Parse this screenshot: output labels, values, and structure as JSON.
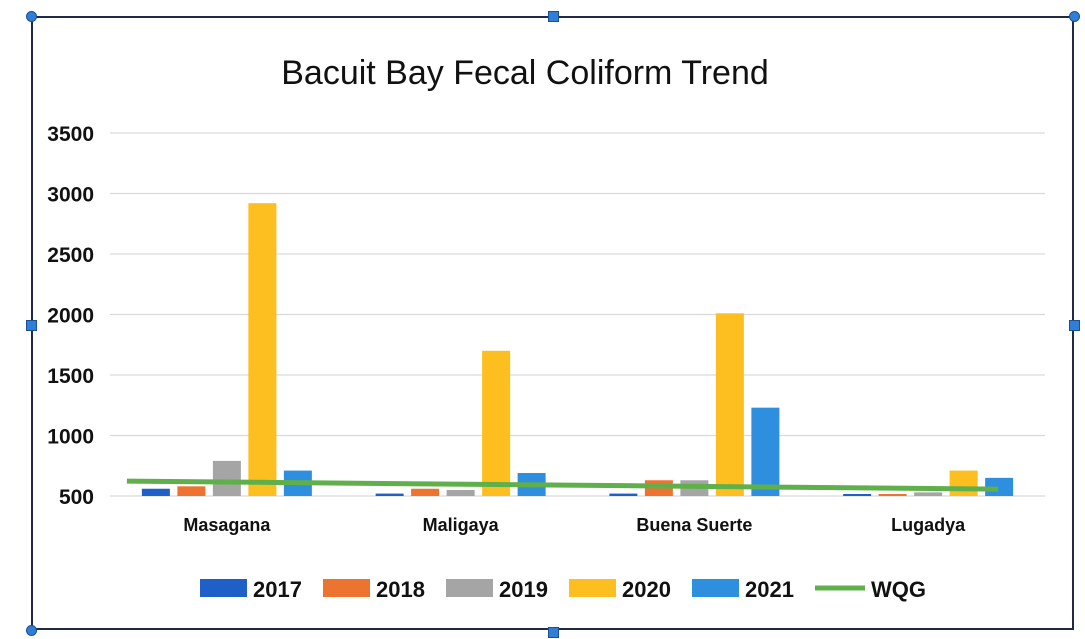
{
  "chart_data": {
    "type": "bar",
    "title": "Bacuit Bay Fecal Coliform Trend",
    "categories": [
      "Masagana",
      "Maligaya",
      "Buena Suerte",
      "Lugadya"
    ],
    "yticks": [
      500,
      1000,
      1500,
      2000,
      2500,
      3000,
      3500
    ],
    "ylim": [
      500,
      3500
    ],
    "series": [
      {
        "name": "2017",
        "color": "#1f5fc8",
        "values": [
          560,
          520,
          520,
          500
        ]
      },
      {
        "name": "2018",
        "color": "#ed7330",
        "values": [
          580,
          560,
          630,
          500
        ]
      },
      {
        "name": "2019",
        "color": "#a5a5a5",
        "values": [
          790,
          550,
          630,
          530
        ]
      },
      {
        "name": "2020",
        "color": "#fdbf1f",
        "values": [
          2920,
          1700,
          2010,
          710
        ]
      },
      {
        "name": "2021",
        "color": "#2e8fdf",
        "values": [
          710,
          690,
          1230,
          650
        ]
      }
    ],
    "lines": [
      {
        "name": "WQG",
        "color": "#5fb04a",
        "value": 590
      }
    ],
    "grid": true,
    "legend_position": "bottom"
  }
}
